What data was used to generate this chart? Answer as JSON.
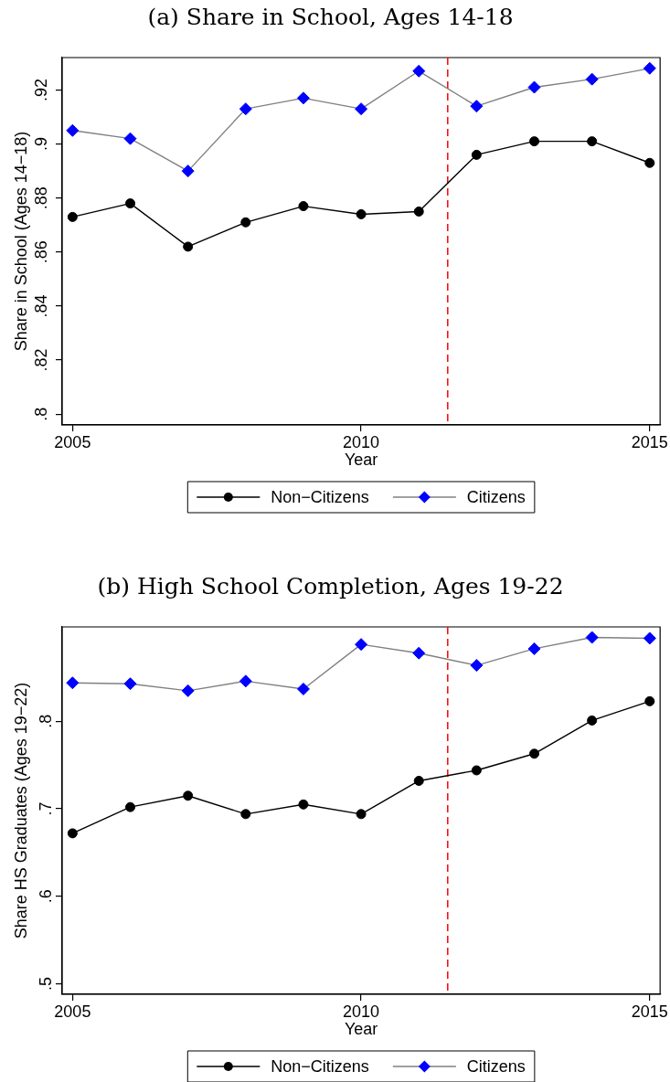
{
  "chart_data": [
    {
      "type": "line",
      "title": "(a) Share in School, Ages 14-18",
      "xlabel": "Year",
      "ylabel": "Share in School (Ages 14−18)",
      "x": [
        2005,
        2006,
        2007,
        2008,
        2009,
        2010,
        2011,
        2012,
        2013,
        2014,
        2015
      ],
      "series": [
        {
          "name": "Non−Citizens",
          "color": "#000000",
          "marker": "circle",
          "values": [
            0.873,
            0.878,
            0.862,
            0.871,
            0.877,
            0.874,
            0.875,
            0.896,
            0.901,
            0.901,
            0.893
          ]
        },
        {
          "name": "Citizens",
          "color": "#0000ff",
          "marker": "diamond",
          "values": [
            0.905,
            0.902,
            0.89,
            0.913,
            0.917,
            0.913,
            0.927,
            0.914,
            0.921,
            0.924,
            0.928
          ]
        }
      ],
      "xlim": [
        2004.82,
        2015.18
      ],
      "xticks": [
        2005,
        2010,
        2015
      ],
      "ylim": [
        0.796,
        0.932
      ],
      "yticks": [
        {
          "value": 0.8,
          "label": ".8"
        },
        {
          "value": 0.82,
          "label": ".82"
        },
        {
          "value": 0.84,
          "label": ".84"
        },
        {
          "value": 0.86,
          "label": ".86"
        },
        {
          "value": 0.88,
          "label": ".88"
        },
        {
          "value": 0.9,
          "label": ".9"
        },
        {
          "value": 0.92,
          "label": ".92"
        }
      ],
      "ref_lines": [
        {
          "axis": "x",
          "value": 2011.5,
          "color": "#ff0000",
          "line_style": "dashed"
        }
      ],
      "legend": "bottom"
    },
    {
      "type": "line",
      "title": "(b) High School Completion, Ages 19-22",
      "xlabel": "Year",
      "ylabel": "Share HS Graduates (Ages 19−22)",
      "x": [
        2005,
        2006,
        2007,
        2008,
        2009,
        2010,
        2011,
        2012,
        2013,
        2014,
        2015
      ],
      "series": [
        {
          "name": "Non−Citizens",
          "color": "#000000",
          "marker": "circle",
          "values": [
            0.672,
            0.702,
            0.715,
            0.694,
            0.705,
            0.694,
            0.732,
            0.744,
            0.763,
            0.801,
            0.823
          ]
        },
        {
          "name": "Citizens",
          "color": "#0000ff",
          "marker": "diamond",
          "values": [
            0.844,
            0.843,
            0.835,
            0.846,
            0.837,
            0.888,
            0.878,
            0.864,
            0.883,
            0.896,
            0.895
          ]
        }
      ],
      "xlim": [
        2004.82,
        2015.18
      ],
      "xticks": [
        2005,
        2010,
        2015
      ],
      "ylim": [
        0.488,
        0.908
      ],
      "yticks": [
        {
          "value": 0.5,
          "label": ".5"
        },
        {
          "value": 0.6,
          "label": ".6"
        },
        {
          "value": 0.7,
          "label": ".7"
        },
        {
          "value": 0.8,
          "label": ".8"
        }
      ],
      "ref_lines": [
        {
          "axis": "x",
          "value": 2011.5,
          "color": "#ff0000",
          "line_style": "dashed"
        }
      ],
      "legend": "bottom"
    }
  ]
}
